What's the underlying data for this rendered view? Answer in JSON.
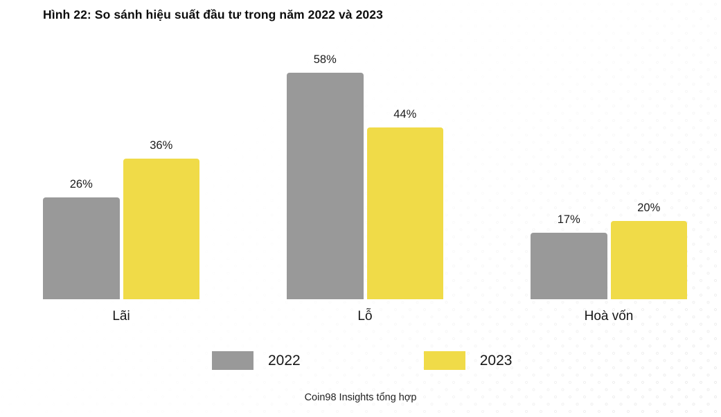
{
  "title": "Hình 22: So sánh hiệu suất đầu tư trong năm 2022 và 2023",
  "footer_credit": "Coin98 Insights tổng hợp",
  "colors": {
    "bar_2022": "#999999",
    "bar_2023": "#f0db48",
    "dot_pattern": "#e9e9e9",
    "text": "#1b1b1b",
    "background": "#ffffff"
  },
  "legend": {
    "items": [
      {
        "label": "2022",
        "color": "#999999"
      },
      {
        "label": "2023",
        "color": "#f0db48"
      }
    ]
  },
  "chart_data": {
    "type": "bar",
    "title": "Hình 22: So sánh hiệu suất đầu tư trong năm 2022 và 2023",
    "categories": [
      "Lãi",
      "Lỗ",
      "Hoà vốn"
    ],
    "series": [
      {
        "name": "2022",
        "color": "#999999",
        "values": [
          26,
          58,
          17
        ],
        "labels": [
          "26%",
          "58%",
          "17%"
        ]
      },
      {
        "name": "2023",
        "color": "#f0db48",
        "values": [
          36,
          44,
          20
        ],
        "labels": [
          "36%",
          "44%",
          "20%"
        ]
      }
    ],
    "value_suffix": "%",
    "xlabel": "",
    "ylabel": "",
    "ylim": [
      0,
      62
    ],
    "grid": false,
    "axis_lines": false,
    "legend_position": "bottom",
    "source": "Coin98 Insights tổng hợp"
  }
}
